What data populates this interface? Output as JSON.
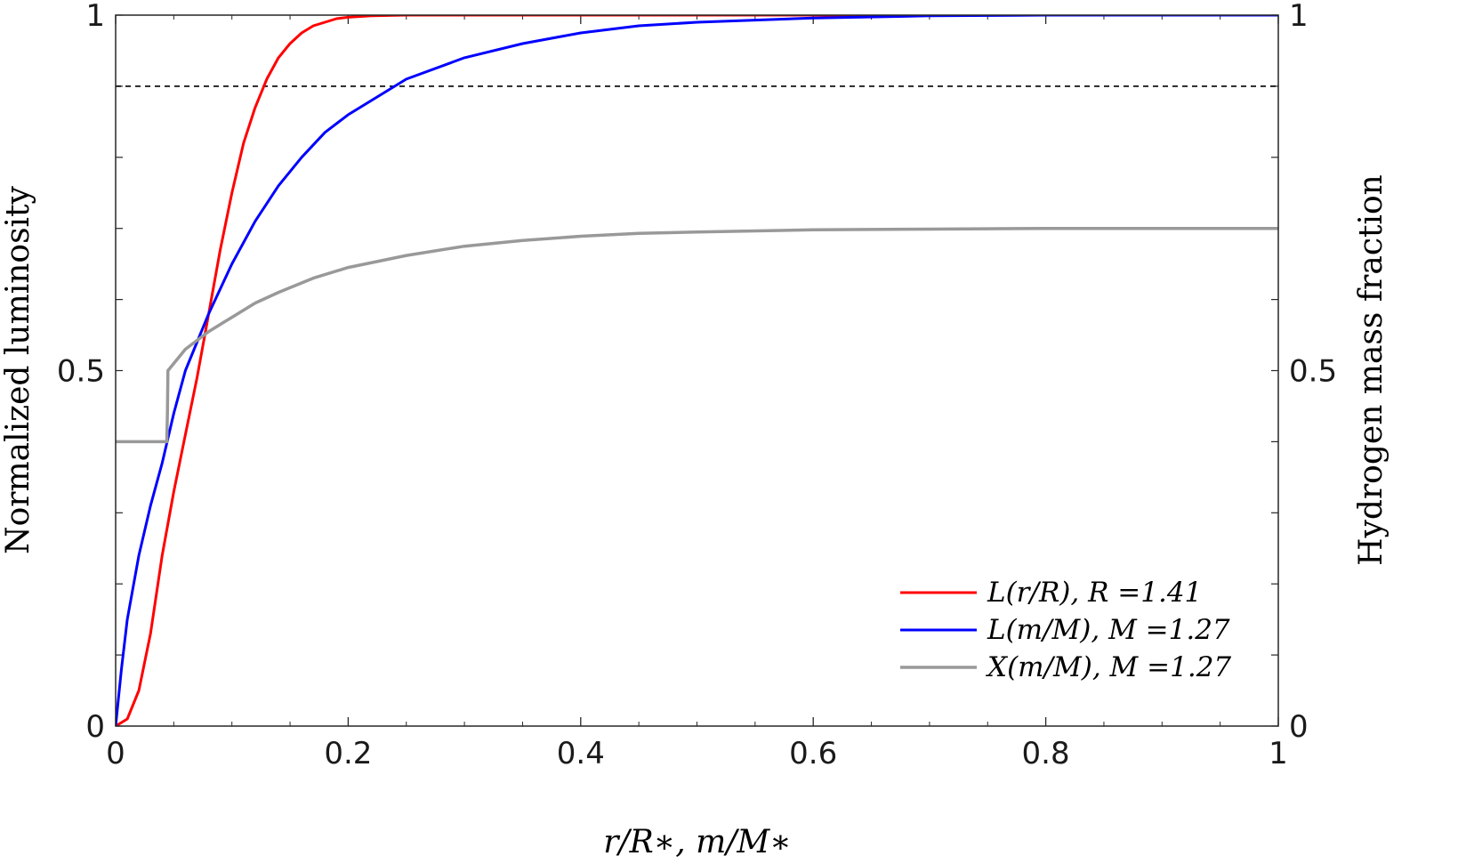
{
  "chart_data": {
    "type": "line",
    "xlabel": "r/R∗, m/M∗",
    "ylabel_left": "Normalized luminosity",
    "ylabel_right": "Hydrogen mass fraction",
    "xlim": [
      0,
      1
    ],
    "ylim_left": [
      0,
      1
    ],
    "ylim_right": [
      0,
      1
    ],
    "x_ticks": [
      0,
      0.2,
      0.4,
      0.6,
      0.8,
      1
    ],
    "x_tick_labels": [
      "0",
      "0.2",
      "0.4",
      "0.6",
      "0.8",
      "1"
    ],
    "y_ticks_left": [
      0,
      0.5,
      1
    ],
    "y_tick_labels_left": [
      "0",
      "0.5",
      "1"
    ],
    "y_ticks_right": [
      0,
      0.5,
      1
    ],
    "y_tick_labels_right": [
      "0",
      "0.5",
      "1"
    ],
    "grid": false,
    "legend_position": "bottom-right",
    "reference_line": {
      "y": 0.9,
      "style": "dashed",
      "color": "#000000"
    },
    "series": [
      {
        "name": "L(r/R), R =1.41",
        "color": "#ff0000",
        "x": [
          0,
          0.01,
          0.02,
          0.03,
          0.04,
          0.05,
          0.06,
          0.07,
          0.08,
          0.09,
          0.1,
          0.11,
          0.12,
          0.13,
          0.14,
          0.15,
          0.16,
          0.17,
          0.18,
          0.19,
          0.2,
          0.22,
          0.25,
          0.3,
          0.4,
          0.5,
          0.6,
          0.7,
          0.8,
          0.9,
          1.0
        ],
        "y": [
          0,
          0.01,
          0.05,
          0.13,
          0.24,
          0.33,
          0.41,
          0.49,
          0.58,
          0.67,
          0.75,
          0.82,
          0.87,
          0.91,
          0.94,
          0.96,
          0.975,
          0.985,
          0.99,
          0.995,
          0.997,
          0.999,
          1.0,
          1.0,
          1.0,
          1.0,
          1.0,
          1.0,
          1.0,
          1.0,
          1.0
        ]
      },
      {
        "name": "L(m/M), M =1.27",
        "color": "#0000ff",
        "x": [
          0,
          0.005,
          0.01,
          0.02,
          0.03,
          0.04,
          0.05,
          0.06,
          0.07,
          0.08,
          0.1,
          0.12,
          0.14,
          0.16,
          0.18,
          0.2,
          0.25,
          0.3,
          0.35,
          0.4,
          0.45,
          0.5,
          0.6,
          0.7,
          0.8,
          0.9,
          1.0
        ],
        "y": [
          0,
          0.08,
          0.15,
          0.24,
          0.31,
          0.37,
          0.44,
          0.5,
          0.54,
          0.58,
          0.65,
          0.71,
          0.76,
          0.8,
          0.835,
          0.86,
          0.91,
          0.94,
          0.96,
          0.975,
          0.985,
          0.99,
          0.996,
          0.999,
          1.0,
          1.0,
          1.0
        ]
      },
      {
        "name": "X(m/M), M =1.27",
        "color": "#999999",
        "x": [
          0,
          0.044,
          0.0445,
          0.045,
          0.06,
          0.08,
          0.1,
          0.12,
          0.14,
          0.17,
          0.2,
          0.25,
          0.3,
          0.35,
          0.4,
          0.45,
          0.5,
          0.6,
          0.7,
          0.8,
          0.9,
          1.0
        ],
        "y": [
          0.4,
          0.4,
          0.44,
          0.5,
          0.53,
          0.555,
          0.575,
          0.595,
          0.61,
          0.63,
          0.645,
          0.662,
          0.675,
          0.683,
          0.689,
          0.693,
          0.695,
          0.698,
          0.699,
          0.7,
          0.7,
          0.7
        ]
      }
    ]
  }
}
